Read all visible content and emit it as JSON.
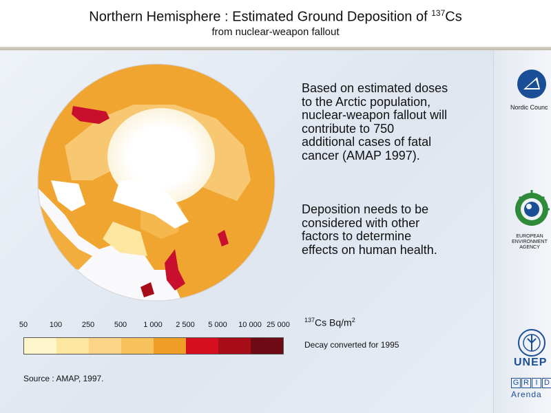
{
  "title": {
    "line1": "Northern Hemisphere : Estimated Ground Deposition of",
    "isotope_sup": "137",
    "isotope_sym": "Cs",
    "line2": "from nuclear-weapon fallout"
  },
  "text_block_1": [
    "Based on estimated doses",
    "to the Arctic population,",
    "nuclear-weapon fallout will",
    "contribute to 750",
    "additional cases of fatal",
    "cancer (AMAP 1997)."
  ],
  "text_block_2": [
    "Deposition needs to be",
    "considered with other",
    "factors to determine",
    "effects on human health."
  ],
  "legend": {
    "labels": [
      "50",
      "100",
      "250",
      "500",
      "1 000",
      "2 500",
      "5 000",
      "10 000",
      "25 000"
    ],
    "colors": [
      "#fff6cc",
      "#fde6a0",
      "#fbd488",
      "#f7c15c",
      "#ef9f28",
      "#d60f1e",
      "#a80c18",
      "#6e0a14"
    ],
    "unit_sup": "137",
    "unit_sym": "Cs Bq/m",
    "unit_exp": "2",
    "decay_note": "Decay converted for 1995"
  },
  "source": "Source : AMAP, 1997.",
  "logos": {
    "nordic_council": "Nordic Counc",
    "eea_lines": [
      "EUROPEAN",
      "ENVIRONMENT",
      "AGENCY"
    ],
    "unep": "UNEP",
    "grid_letters": [
      "G",
      "R",
      "I",
      "D"
    ],
    "arendal": "Arenda"
  },
  "colors": {
    "land_base": "#f1a531",
    "high_deposition": "#c8102e",
    "unep_blue": "#1a4e96",
    "eea_green": "#2f8a3a"
  }
}
